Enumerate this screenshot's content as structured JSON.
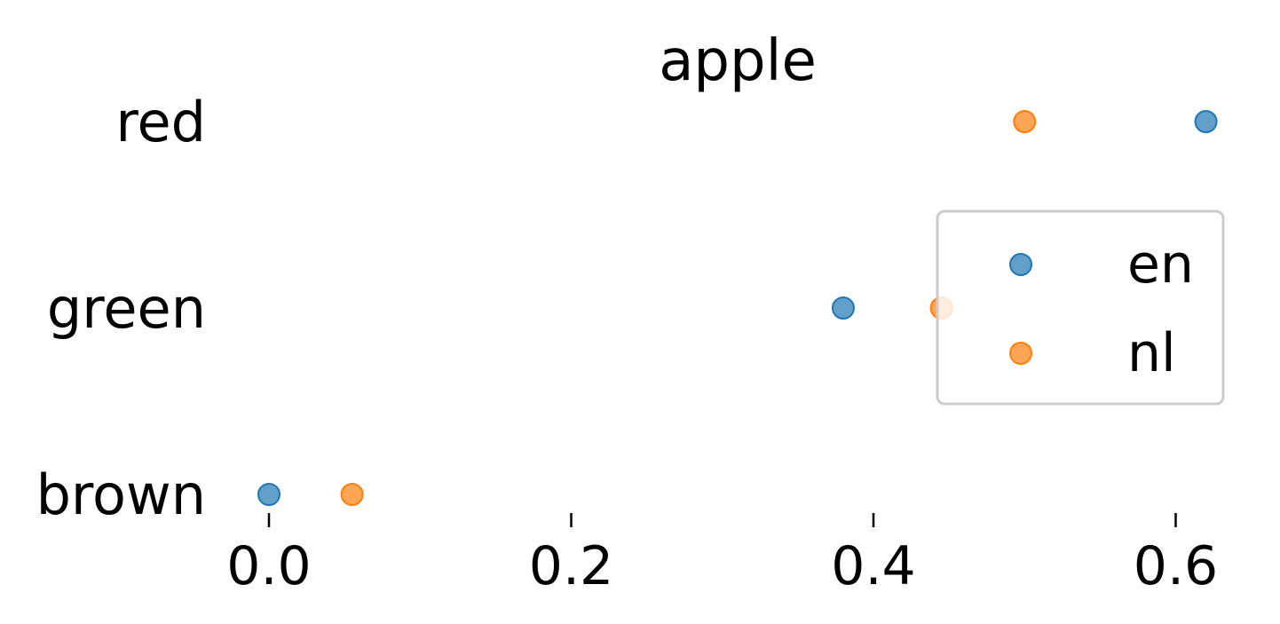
{
  "chart_data": {
    "type": "scatter",
    "title": "apple",
    "xlabel": "",
    "ylabel": "",
    "categories": [
      "red",
      "green",
      "brown"
    ],
    "x_ticks": [
      "0.0",
      "0.2",
      "0.4",
      "0.6"
    ],
    "xlim": [
      -0.02,
      0.62
    ],
    "grid": false,
    "legend_position": "right",
    "series": [
      {
        "name": "en",
        "color": "#1f77b4",
        "values": [
          0.62,
          0.38,
          0.0
        ]
      },
      {
        "name": "nl",
        "color": "#ff7f0e",
        "values": [
          0.5,
          0.445,
          0.055
        ]
      }
    ]
  }
}
